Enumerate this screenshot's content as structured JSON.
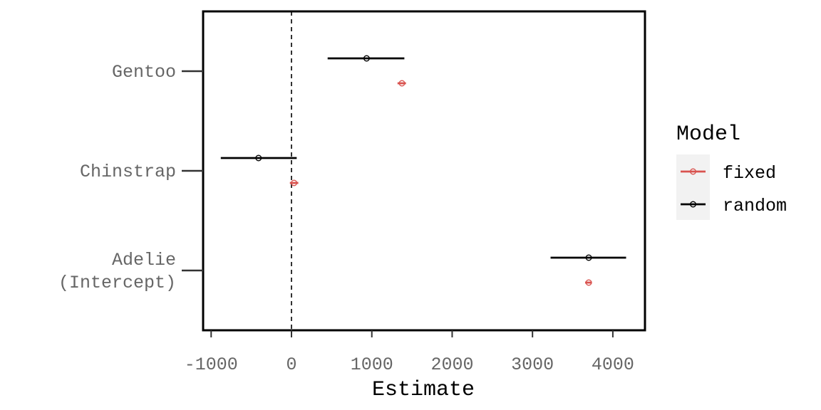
{
  "chart_data": {
    "type": "scatter",
    "subtype": "coefficient-plot-with-intervals",
    "title": "",
    "xlabel": "Estimate",
    "ylabel": "",
    "xlim": [
      -1100,
      4400
    ],
    "x_ticks": [
      -1000,
      0,
      1000,
      2000,
      3000,
      4000
    ],
    "x_tick_labels": [
      "-1000",
      "0",
      "1000",
      "2000",
      "3000",
      "4000"
    ],
    "reference_line": {
      "x": 0,
      "style": "dashed"
    },
    "categories": [
      "Gentoo",
      "Chinstrap",
      "Adelie\n(Intercept)"
    ],
    "category_labels": [
      [
        "Gentoo"
      ],
      [
        "Chinstrap"
      ],
      [
        "Adelie",
        "(Intercept)"
      ]
    ],
    "grid": false,
    "legend": {
      "title": "Model",
      "position": "right"
    },
    "series": [
      {
        "name": "fixed",
        "color": "#d9534f",
        "points": [
          {
            "category": "Gentoo",
            "estimate": 1375,
            "low": 1320,
            "high": 1425
          },
          {
            "category": "Chinstrap",
            "estimate": 32,
            "low": -20,
            "high": 85
          },
          {
            "category": "Adelie\n(Intercept)",
            "estimate": 3700,
            "low": 3655,
            "high": 3740
          }
        ]
      },
      {
        "name": "random",
        "color": "#000000",
        "points": [
          {
            "category": "Gentoo",
            "estimate": 935,
            "low": 450,
            "high": 1405
          },
          {
            "category": "Chinstrap",
            "estimate": -410,
            "low": -880,
            "high": 65
          },
          {
            "category": "Adelie\n(Intercept)",
            "estimate": 3700,
            "low": 3225,
            "high": 4165
          }
        ]
      }
    ]
  }
}
